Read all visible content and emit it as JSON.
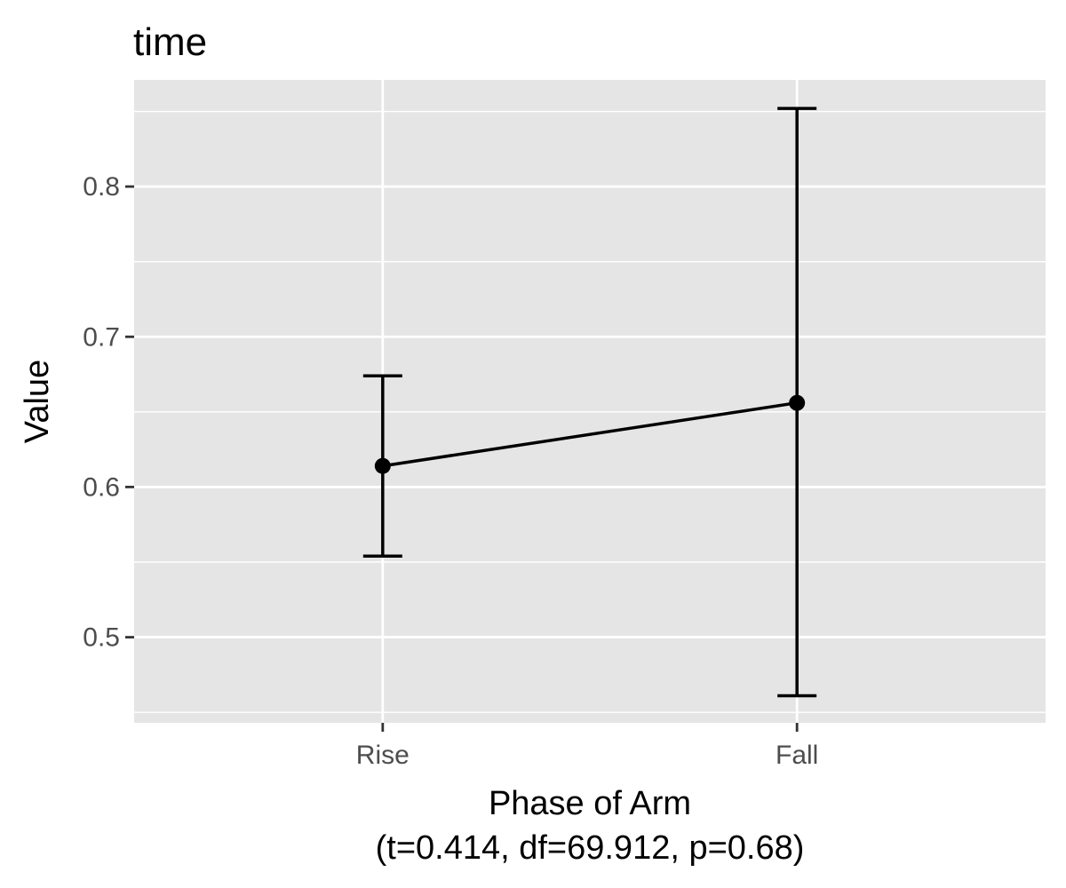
{
  "chart_data": {
    "type": "line",
    "title": "time",
    "xlabel": "Phase of Arm",
    "xlabel_sub": "(t=0.414, df=69.912, p=0.68)",
    "ylabel": "Value",
    "categories": [
      "Rise",
      "Fall"
    ],
    "series": [
      {
        "values": [
          0.614,
          0.656
        ],
        "error_low": [
          0.554,
          0.461
        ],
        "error_high": [
          0.674,
          0.852
        ]
      }
    ],
    "ylim": [
      0.443,
      0.871
    ],
    "yticks": [
      0.5,
      0.6,
      0.7,
      0.8
    ],
    "ytick_labels": [
      "0.5",
      "0.6",
      "0.7",
      "0.8"
    ],
    "grid": true,
    "colors": {
      "panel": "#e5e5e5",
      "grid": "#ffffff",
      "mark": "#000000",
      "tick_text": "#4d4d4d"
    }
  }
}
